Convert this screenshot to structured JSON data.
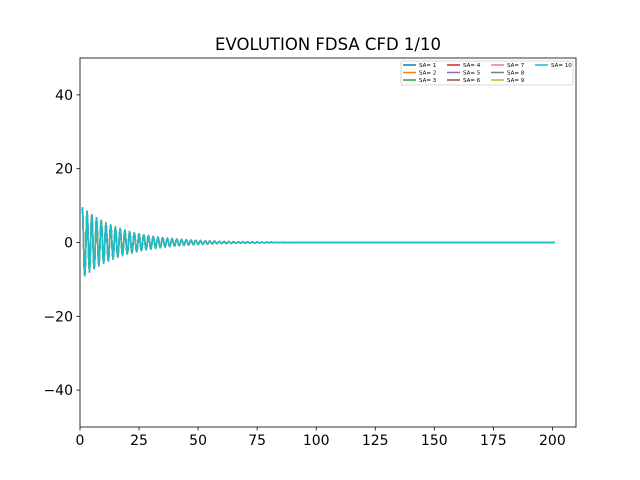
{
  "chart_data": {
    "type": "line",
    "title": "EVOLUTION FDSA CFD 1/10",
    "xlabel": "",
    "ylabel": "",
    "xlim": [
      0,
      210
    ],
    "ylim": [
      -50,
      50
    ],
    "x_ticks": [
      0,
      25,
      50,
      75,
      100,
      125,
      150,
      175,
      200
    ],
    "y_ticks": [
      -40,
      -20,
      0,
      20,
      40
    ],
    "x_tick_labels": [
      "0",
      "25",
      "50",
      "75",
      "100",
      "125",
      "150",
      "175",
      "200"
    ],
    "y_tick_labels": [
      "−40",
      "−20",
      "0",
      "20",
      "40"
    ],
    "grid": false,
    "legend": {
      "placement": "top-right",
      "columns": 4
    },
    "signal_model": {
      "description_of_curves": "damped oscillation around zero",
      "amplitude": 9.5,
      "decay_rate": 0.058,
      "period": 2,
      "x_start": 1,
      "x_end": 201
    },
    "series": [
      {
        "name": "SA= 1",
        "color": "#1f77b4"
      },
      {
        "name": "SA= 2",
        "color": "#ff7f0e"
      },
      {
        "name": "SA= 3",
        "color": "#2ca02c"
      },
      {
        "name": "SA= 4",
        "color": "#d62728"
      },
      {
        "name": "SA= 5",
        "color": "#9467bd"
      },
      {
        "name": "SA= 6",
        "color": "#8c564b"
      },
      {
        "name": "SA= 7",
        "color": "#e377c2"
      },
      {
        "name": "SA= 8",
        "color": "#7f7f7f"
      },
      {
        "name": "SA= 9",
        "color": "#bcbd22"
      },
      {
        "name": "SA= 10",
        "color": "#17becf"
      }
    ]
  }
}
